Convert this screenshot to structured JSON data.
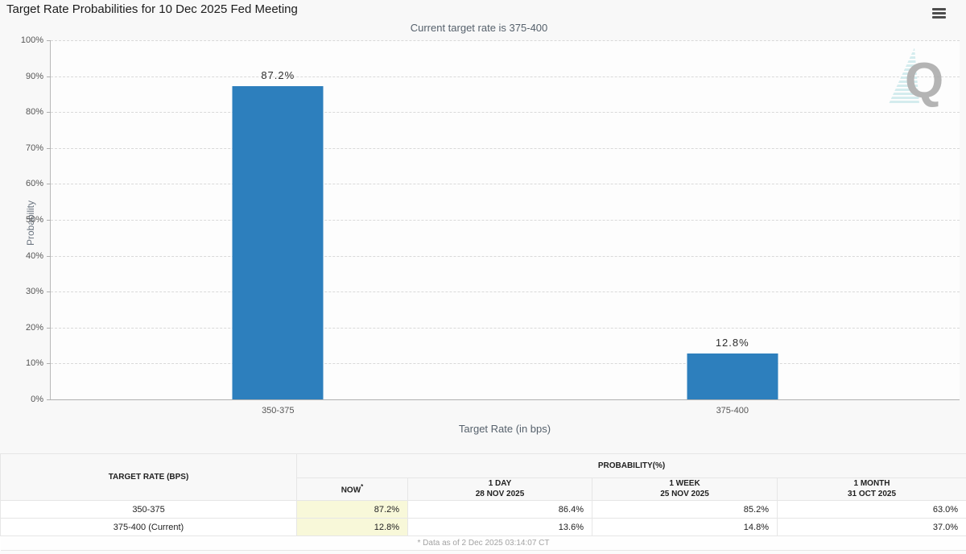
{
  "header": {
    "title": "Target Rate Probabilities for 10 Dec 2025 Fed Meeting",
    "subtitle": "Current target rate is 375-400",
    "menu_icon": "hamburger-icon"
  },
  "chart_data": {
    "type": "bar",
    "categories": [
      "350-375",
      "375-400"
    ],
    "values": [
      87.2,
      12.8
    ],
    "value_labels": [
      "87.2%",
      "12.8%"
    ],
    "title": "Target Rate Probabilities for 10 Dec 2025 Fed Meeting",
    "xlabel": "Target Rate (in bps)",
    "ylabel": "Probability",
    "ylim": [
      0,
      100
    ],
    "ytick_step": 10,
    "ytick_suffix": "%",
    "bar_color": "#2d7fbd",
    "grid": "horizontal-dashed",
    "legend": "none",
    "watermark_letter": "Q"
  },
  "table": {
    "col1_header": "TARGET RATE (BPS)",
    "group_header": "PROBABILITY(%)",
    "subheaders": [
      {
        "line1": "NOW",
        "sup": "*",
        "line2": ""
      },
      {
        "line1": "1 DAY",
        "sup": "",
        "line2": "28 NOV 2025"
      },
      {
        "line1": "1 WEEK",
        "sup": "",
        "line2": "25 NOV 2025"
      },
      {
        "line1": "1 MONTH",
        "sup": "",
        "line2": "31 OCT 2025"
      }
    ],
    "rows": [
      {
        "rate": "350-375",
        "now": "87.2%",
        "day": "86.4%",
        "week": "85.2%",
        "month": "63.0%"
      },
      {
        "rate": "375-400 (Current)",
        "now": "12.8%",
        "day": "13.6%",
        "week": "14.8%",
        "month": "37.0%"
      }
    ],
    "footnote": "* Data as of 2 Dec 2025 03:14:07 CT",
    "now_column_bg": "#f8f8d9"
  }
}
